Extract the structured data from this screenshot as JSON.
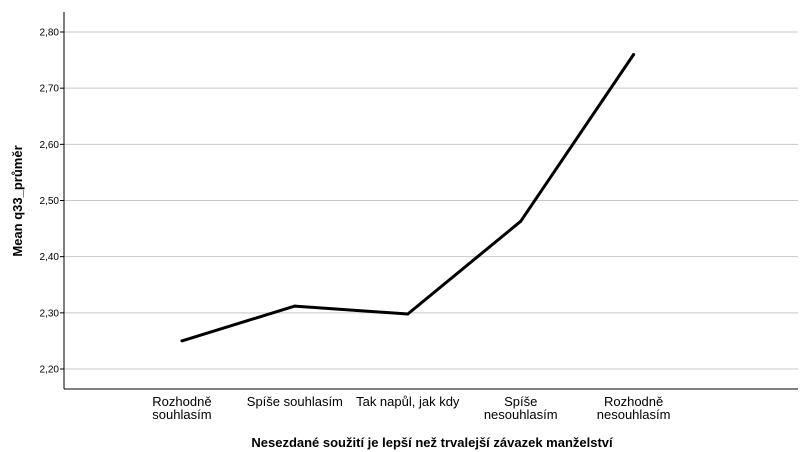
{
  "chart_data": {
    "type": "line",
    "xlabel": "Nesezdané soužití je lepší než trvalejší závazek manželství",
    "ylabel": "Mean q33_průměr",
    "categories": [
      [
        "Rozhodně",
        "souhlasím"
      ],
      [
        "Spíše souhlasím"
      ],
      [
        "Tak napůl, jak kdy"
      ],
      [
        "Spíše",
        "nesouhlasím"
      ],
      [
        "Rozhodně",
        "nesouhlasím"
      ]
    ],
    "values": [
      2.25,
      2.312,
      2.298,
      2.463,
      2.76
    ],
    "ylim": [
      2.2,
      2.8
    ],
    "yticks": [
      "2,20",
      "2,30",
      "2,40",
      "2,50",
      "2,60",
      "2,70",
      "2,80"
    ],
    "grid": "horizontal",
    "line_color": "#000000",
    "grid_color": "#c8c8c8"
  }
}
